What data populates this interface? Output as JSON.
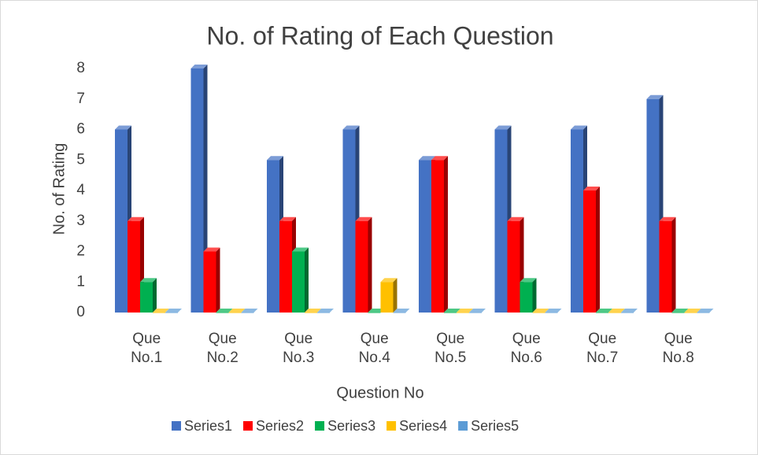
{
  "chart_data": {
    "type": "bar3d",
    "title": "No. of Rating of Each Question",
    "x_label": "Question No",
    "y_label": "No. of Rating",
    "categories": [
      "Que No.1",
      "Que No.2",
      "Que No.3",
      "Que No.4",
      "Que No.5",
      "Que No.6",
      "Que No.7",
      "Que No.8"
    ],
    "series": [
      {
        "name": "Series1",
        "color": "#4472c4",
        "values": [
          6,
          8,
          5,
          6,
          5,
          6,
          6,
          7
        ]
      },
      {
        "name": "Series2",
        "color": "#ff0000",
        "values": [
          3,
          2,
          3,
          3,
          5,
          3,
          4,
          3
        ]
      },
      {
        "name": "Series3",
        "color": "#00b050",
        "values": [
          1,
          0,
          2,
          0,
          0,
          1,
          0,
          0
        ]
      },
      {
        "name": "Series4",
        "color": "#ffc000",
        "values": [
          0,
          0,
          0,
          1,
          0,
          0,
          0,
          0
        ]
      },
      {
        "name": "Series5",
        "color": "#5b9bd5",
        "values": [
          0,
          0,
          0,
          0,
          0,
          0,
          0,
          0
        ]
      }
    ],
    "ylim": [
      0,
      8
    ],
    "yticks": [
      0,
      1,
      2,
      3,
      4,
      5,
      6,
      7,
      8
    ],
    "grid": false,
    "legend": "bottom"
  }
}
